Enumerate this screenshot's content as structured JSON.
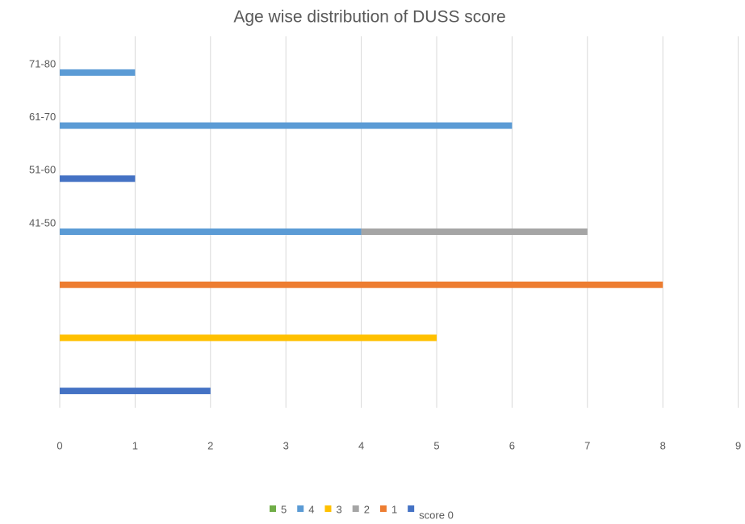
{
  "chart_data": {
    "type": "bar",
    "orientation": "horizontal",
    "stacked": true,
    "title": "Age wise distribution of DUSS score",
    "categories": [
      "71-80",
      "61-70",
      "51-60",
      "41-50",
      null,
      null,
      null
    ],
    "series": [
      {
        "name": "5",
        "color": "#70ad47",
        "values": [
          null,
          null,
          null,
          null,
          null,
          null,
          null
        ]
      },
      {
        "name": "4",
        "color": "#5b9bd5",
        "values": [
          1,
          6,
          null,
          4,
          null,
          null,
          null
        ]
      },
      {
        "name": "3",
        "color": "#ffc000",
        "values": [
          null,
          null,
          null,
          null,
          null,
          5,
          null
        ]
      },
      {
        "name": "2",
        "color": "#a5a5a5",
        "values": [
          null,
          null,
          null,
          3,
          null,
          null,
          null
        ]
      },
      {
        "name": "1",
        "color": "#ed7d31",
        "values": [
          null,
          null,
          null,
          null,
          8,
          null,
          null
        ]
      },
      {
        "name": "score 0",
        "color": "#4472c4",
        "values": [
          null,
          null,
          1,
          null,
          null,
          null,
          2
        ]
      }
    ],
    "xlim": [
      0,
      9
    ],
    "xticks": [
      0,
      1,
      2,
      3,
      4,
      5,
      6,
      7,
      8,
      9
    ],
    "grid": true,
    "legend": "bottom"
  }
}
